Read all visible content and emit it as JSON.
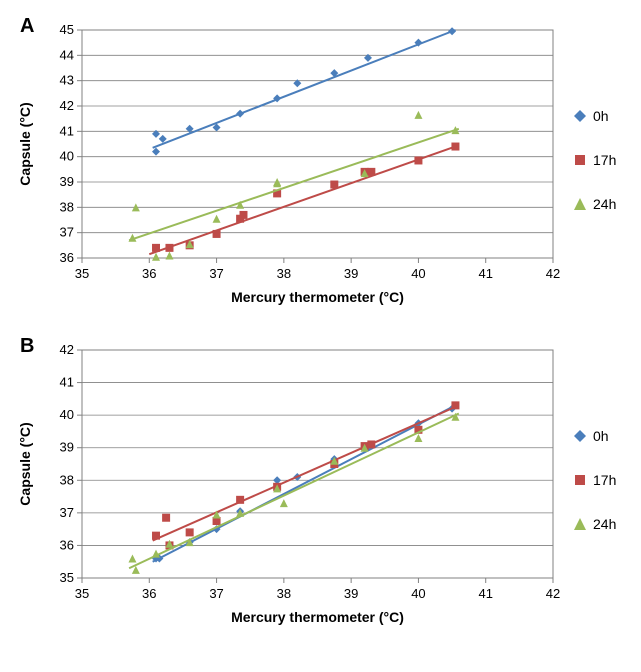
{
  "panelA": {
    "label": "A",
    "chart": {
      "type": "scatter",
      "xlabel": "Mercury thermometer (°C)",
      "ylabel": "Capsule (°C)",
      "xlim": [
        35,
        42
      ],
      "ylim": [
        36,
        45
      ],
      "xtick_step": 1,
      "ytick_step": 1,
      "background_color": "#ffffff",
      "grid_color": "#808080",
      "border_color": "#808080",
      "label_fontsize": 14,
      "tick_fontsize": 13,
      "series": [
        {
          "name": "0h",
          "marker": "diamond",
          "color": "#4a7ebb",
          "trend_color": "#4a7ebb",
          "data": [
            [
              36.1,
              40.2
            ],
            [
              36.1,
              40.9
            ],
            [
              36.2,
              40.7
            ],
            [
              36.6,
              41.1
            ],
            [
              37.0,
              41.15
            ],
            [
              37.35,
              41.7
            ],
            [
              37.9,
              42.3
            ],
            [
              38.2,
              42.9
            ],
            [
              38.75,
              43.3
            ],
            [
              39.25,
              43.9
            ],
            [
              40.0,
              44.5
            ],
            [
              40.5,
              44.95
            ]
          ],
          "trend": [
            [
              36.05,
              40.35
            ],
            [
              40.55,
              45.0
            ]
          ]
        },
        {
          "name": "17h",
          "marker": "square",
          "color": "#be4b48",
          "trend_color": "#be4b48",
          "data": [
            [
              36.1,
              36.4
            ],
            [
              36.3,
              36.4
            ],
            [
              36.6,
              36.5
            ],
            [
              37.0,
              36.95
            ],
            [
              37.35,
              37.55
            ],
            [
              37.4,
              37.7
            ],
            [
              37.9,
              38.55
            ],
            [
              38.75,
              38.9
            ],
            [
              39.2,
              39.4
            ],
            [
              39.3,
              39.4
            ],
            [
              40.0,
              39.85
            ],
            [
              40.55,
              40.4
            ]
          ],
          "trend": [
            [
              36.0,
              36.15
            ],
            [
              40.6,
              40.45
            ]
          ]
        },
        {
          "name": "24h",
          "marker": "triangle",
          "color": "#9abb59",
          "trend_color": "#9abb59",
          "data": [
            [
              35.75,
              36.8
            ],
            [
              35.8,
              38.0
            ],
            [
              36.1,
              36.05
            ],
            [
              36.3,
              36.1
            ],
            [
              36.6,
              36.55
            ],
            [
              37.0,
              37.55
            ],
            [
              37.35,
              38.1
            ],
            [
              37.9,
              38.95
            ],
            [
              37.9,
              39.0
            ],
            [
              39.2,
              39.35
            ],
            [
              40.0,
              41.65
            ],
            [
              40.55,
              41.05
            ]
          ],
          "trend": [
            [
              35.7,
              36.7
            ],
            [
              40.6,
              41.1
            ]
          ]
        }
      ]
    }
  },
  "panelB": {
    "label": "B",
    "chart": {
      "type": "scatter",
      "xlabel": "Mercury thermometer (°C)",
      "ylabel": "Capsule (°C)",
      "xlim": [
        35,
        42
      ],
      "ylim": [
        35,
        42
      ],
      "xtick_step": 1,
      "ytick_step": 1,
      "background_color": "#ffffff",
      "grid_color": "#808080",
      "border_color": "#808080",
      "label_fontsize": 14,
      "tick_fontsize": 13,
      "series": [
        {
          "name": "0h",
          "marker": "diamond",
          "color": "#4a7ebb",
          "trend_color": "#4a7ebb",
          "data": [
            [
              36.1,
              35.6
            ],
            [
              36.15,
              35.6
            ],
            [
              36.3,
              36.0
            ],
            [
              36.6,
              36.1
            ],
            [
              37.0,
              36.5
            ],
            [
              37.35,
              37.05
            ],
            [
              37.9,
              38.0
            ],
            [
              38.2,
              38.1
            ],
            [
              38.75,
              38.65
            ],
            [
              39.25,
              39.05
            ],
            [
              40.0,
              39.75
            ],
            [
              40.5,
              40.2
            ]
          ],
          "trend": [
            [
              36.05,
              35.5
            ],
            [
              40.55,
              40.3
            ]
          ]
        },
        {
          "name": "17h",
          "marker": "square",
          "color": "#be4b48",
          "trend_color": "#be4b48",
          "data": [
            [
              36.1,
              36.3
            ],
            [
              36.25,
              36.85
            ],
            [
              36.3,
              36.0
            ],
            [
              36.6,
              36.4
            ],
            [
              37.0,
              36.75
            ],
            [
              37.35,
              37.4
            ],
            [
              37.9,
              37.8
            ],
            [
              38.75,
              38.5
            ],
            [
              39.2,
              39.05
            ],
            [
              39.3,
              39.1
            ],
            [
              40.0,
              39.55
            ],
            [
              40.55,
              40.3
            ]
          ],
          "trend": [
            [
              36.05,
              36.15
            ],
            [
              40.6,
              40.3
            ]
          ]
        },
        {
          "name": "24h",
          "marker": "triangle",
          "color": "#9abb59",
          "trend_color": "#9abb59",
          "data": [
            [
              35.75,
              35.6
            ],
            [
              35.8,
              35.25
            ],
            [
              36.1,
              35.75
            ],
            [
              36.3,
              36.05
            ],
            [
              36.6,
              36.1
            ],
            [
              37.0,
              36.95
            ],
            [
              37.35,
              37.0
            ],
            [
              37.9,
              37.75
            ],
            [
              38.0,
              37.3
            ],
            [
              38.75,
              38.6
            ],
            [
              39.2,
              39.0
            ],
            [
              40.0,
              39.3
            ],
            [
              40.55,
              39.95
            ]
          ],
          "trend": [
            [
              35.7,
              35.3
            ],
            [
              40.6,
              40.05
            ]
          ]
        }
      ]
    }
  },
  "legend": {
    "items": [
      {
        "label": "0h",
        "marker": "diamond",
        "color": "#4a7ebb"
      },
      {
        "label": "17h",
        "marker": "square",
        "color": "#be4b48"
      },
      {
        "label": "24h",
        "marker": "triangle",
        "color": "#9abb59"
      }
    ]
  }
}
